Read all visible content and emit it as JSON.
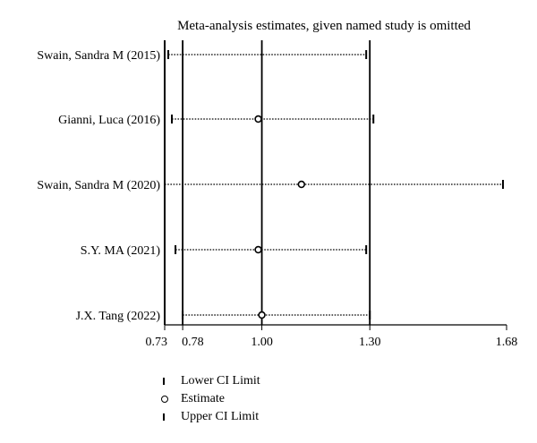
{
  "chart_data": {
    "type": "scatter",
    "title": "Meta-analysis estimates, given named study is omitted",
    "studies": [
      {
        "name": "Swain, Sandra M (2015)",
        "lower": 0.74,
        "estimate": null,
        "upper": 1.29
      },
      {
        "name": "Gianni, Luca (2016)",
        "lower": 0.75,
        "estimate": 0.99,
        "upper": 1.31
      },
      {
        "name": "Swain, Sandra M (2020)",
        "lower": null,
        "estimate": 1.11,
        "upper": 1.67
      },
      {
        "name": "S.Y. MA (2021)",
        "lower": 0.76,
        "estimate": 0.99,
        "upper": 1.29
      },
      {
        "name": "J.X. Tang (2022)",
        "lower": 0.78,
        "estimate": 1.0,
        "upper": 1.3
      }
    ],
    "x_ticks": [
      0.73,
      0.78,
      1.0,
      1.3,
      1.68
    ],
    "reference_lines": [
      0.78,
      1.0,
      1.3
    ],
    "xlim": [
      0.73,
      1.68
    ],
    "legend": {
      "lower": "Lower CI Limit",
      "estimate": "Estimate",
      "upper": "Upper CI Limit"
    }
  }
}
